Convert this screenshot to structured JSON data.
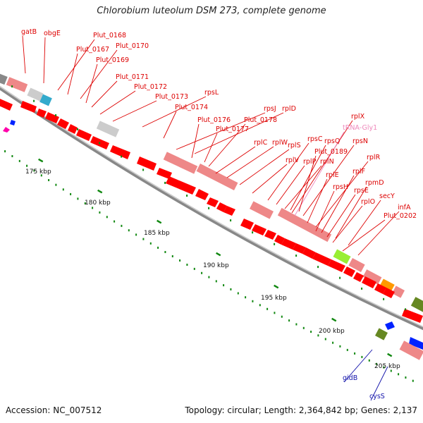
{
  "title": "Chlorobium luteolum DSM 273, complete genome",
  "footer": {
    "accession": "Accession: NC_007512",
    "topology": "Topology: circular; Length: 2,364,842 bp; Genes: 2,137"
  },
  "colors": {
    "gene_red": "#ff0000",
    "gene_pink": "#ee8888",
    "label_red": "#dd0000",
    "label_pink": "#ee88bb",
    "label_blue": "#1111aa",
    "tick_green": "#118811",
    "green_block": "#99ee33",
    "orange_block": "#ff9900",
    "olive_block": "#668822",
    "blue_block": "#0022ff",
    "cyan_block": "#33aacc",
    "gray_block": "#cccccc",
    "backbone": "#888888"
  },
  "kbp_ticks": [
    {
      "label": "175 kbp"
    },
    {
      "label": "180 kbp"
    },
    {
      "label": "185 kbp"
    },
    {
      "label": "190 kbp"
    },
    {
      "label": "195 kbp"
    },
    {
      "label": "200 kbp"
    },
    {
      "label": "205 kbp"
    }
  ],
  "gene_labels": [
    {
      "text": "gatB",
      "color": "red"
    },
    {
      "text": "obgE",
      "color": "red"
    },
    {
      "text": "Plut_0168",
      "color": "red"
    },
    {
      "text": "Plut_0167",
      "color": "red"
    },
    {
      "text": "Plut_0170",
      "color": "red"
    },
    {
      "text": "Plut_0169",
      "color": "red"
    },
    {
      "text": "Plut_0171",
      "color": "red"
    },
    {
      "text": "Plut_0172",
      "color": "red"
    },
    {
      "text": "Plut_0173",
      "color": "red"
    },
    {
      "text": "rpsL",
      "color": "red"
    },
    {
      "text": "Plut_0174",
      "color": "red"
    },
    {
      "text": "rpsJ",
      "color": "red"
    },
    {
      "text": "rplD",
      "color": "red"
    },
    {
      "text": "Plut_0176",
      "color": "red"
    },
    {
      "text": "Plut_0178",
      "color": "red"
    },
    {
      "text": "Plut_0177",
      "color": "red"
    },
    {
      "text": "rplX",
      "color": "red"
    },
    {
      "text": "tRNA-Gly1",
      "color": "pink"
    },
    {
      "text": "rpsC",
      "color": "red"
    },
    {
      "text": "rplC",
      "color": "red"
    },
    {
      "text": "rplW",
      "color": "red"
    },
    {
      "text": "rpsQ",
      "color": "red"
    },
    {
      "text": "rpsN",
      "color": "red"
    },
    {
      "text": "rplS",
      "color": "red"
    },
    {
      "text": "Plut_0189",
      "color": "red"
    },
    {
      "text": "rplV",
      "color": "red"
    },
    {
      "text": "rplP",
      "color": "red"
    },
    {
      "text": "rplN",
      "color": "red"
    },
    {
      "text": "rplR",
      "color": "red"
    },
    {
      "text": "rplE",
      "color": "red"
    },
    {
      "text": "rplF",
      "color": "red"
    },
    {
      "text": "rpsH",
      "color": "red"
    },
    {
      "text": "rpmD",
      "color": "red"
    },
    {
      "text": "rpsE",
      "color": "red"
    },
    {
      "text": "secY",
      "color": "red"
    },
    {
      "text": "rplO",
      "color": "red"
    },
    {
      "text": "infA",
      "color": "red"
    },
    {
      "text": "Plut_0202",
      "color": "red"
    },
    {
      "text": "gidB",
      "color": "blue"
    },
    {
      "text": "cysS",
      "color": "blue"
    }
  ]
}
